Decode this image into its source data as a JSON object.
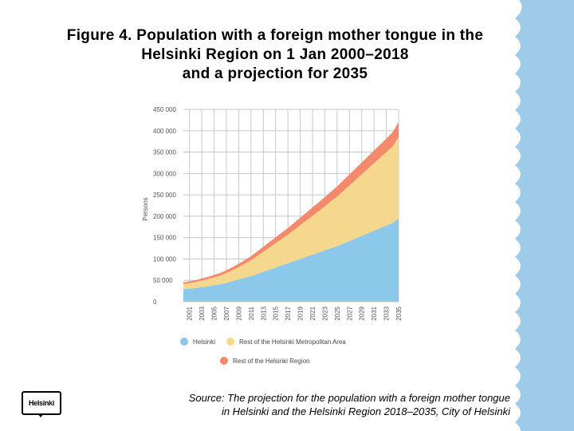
{
  "title": {
    "line1": "Figure 4. Population with a foreign mother tongue in the",
    "line2": "Helsinki Region on 1 Jan 2000–2018",
    "line3": "and a projection for 2035"
  },
  "colors": {
    "helsinki": "#8cc8ea",
    "rest_metro": "#f5d78e",
    "rest_region": "#f4896b",
    "side_band": "#9fcbea",
    "grid": "#c8c8c8"
  },
  "chart_data": {
    "type": "area",
    "stacked": true,
    "ylabel": "Persons",
    "ylim": [
      0,
      450000
    ],
    "y_ticks": [
      0,
      50000,
      100000,
      150000,
      200000,
      250000,
      300000,
      350000,
      400000,
      450000
    ],
    "y_tick_labels": [
      "0",
      "50 000",
      "100 000",
      "150 000",
      "200 000",
      "250 000",
      "300 000",
      "350 000",
      "400 000",
      "450 000"
    ],
    "x_tick_labels": [
      "2001",
      "2003",
      "2005",
      "2007",
      "2009",
      "2011",
      "2013",
      "2015",
      "2017",
      "2019",
      "2021",
      "2023",
      "2025",
      "2027",
      "2029",
      "2031",
      "2033",
      "2035"
    ],
    "x": [
      2000,
      2001,
      2002,
      2003,
      2004,
      2005,
      2006,
      2007,
      2008,
      2009,
      2010,
      2011,
      2012,
      2013,
      2014,
      2015,
      2016,
      2017,
      2018,
      2019,
      2020,
      2021,
      2022,
      2023,
      2024,
      2025,
      2026,
      2027,
      2028,
      2029,
      2030,
      2031,
      2032,
      2033,
      2034,
      2035
    ],
    "series": [
      {
        "name": "Helsinki",
        "values": [
          29000,
          30500,
          32000,
          34000,
          36000,
          38500,
          41000,
          44000,
          48000,
          52000,
          56000,
          60000,
          65000,
          70000,
          75000,
          80000,
          85000,
          90000,
          95000,
          100000,
          105000,
          110000,
          115000,
          120000,
          125000,
          130000,
          136000,
          142000,
          148000,
          154000,
          160000,
          166000,
          172000,
          178000,
          184000,
          195000
        ]
      },
      {
        "name": "Rest of the Helsinki Metropolitan Area",
        "values": [
          12000,
          13000,
          14000,
          15500,
          17000,
          18500,
          20500,
          23000,
          26000,
          29000,
          33000,
          37000,
          42000,
          47000,
          52000,
          57000,
          62000,
          67000,
          73000,
          79000,
          85000,
          91000,
          97000,
          103000,
          110000,
          116000,
          123000,
          130000,
          137000,
          144000,
          151000,
          158000,
          165000,
          172000,
          179000,
          190000
        ]
      },
      {
        "name": "Rest of the Helsinki Region",
        "values": [
          4000,
          4200,
          4500,
          4800,
          5100,
          5500,
          6000,
          6500,
          7000,
          7800,
          8600,
          9400,
          10500,
          11500,
          12500,
          13500,
          14500,
          15500,
          16500,
          17500,
          18500,
          19500,
          20500,
          21500,
          22500,
          23500,
          24500,
          25500,
          26500,
          27500,
          28500,
          29500,
          30500,
          31500,
          33000,
          35000
        ]
      }
    ]
  },
  "legend": {
    "helsinki": "Helsinki",
    "rest_metro": "Rest of the Helsinki Metropolitan Area",
    "rest_region": "Rest of the Helsinki Region"
  },
  "source": {
    "line1": "Source: The projection for the population with a foreign mother tongue",
    "line2": "in Helsinki and the Helsinki Region 2018–2035, City of Helsinki"
  },
  "logo": {
    "text": "Helsinki"
  }
}
